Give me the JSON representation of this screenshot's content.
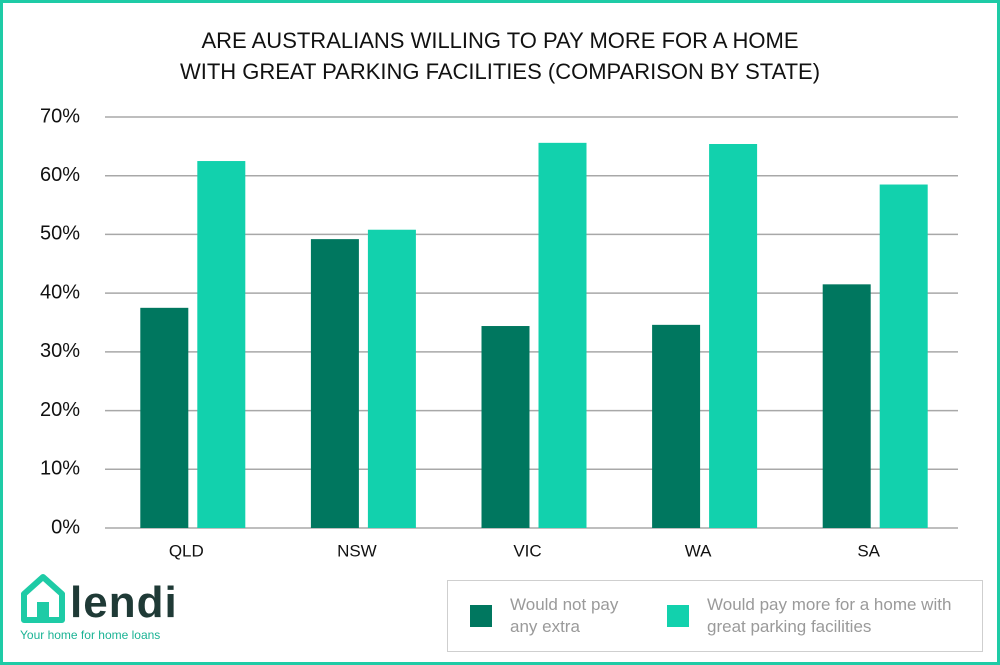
{
  "chart_data": {
    "type": "bar",
    "title": [
      "ARE AUSTRALIANS WILLING TO PAY MORE FOR A HOME",
      "WITH GREAT PARKING FACILITIES (COMPARISON BY STATE)"
    ],
    "categories": [
      "QLD",
      "NSW",
      "VIC",
      "WA",
      "SA"
    ],
    "series": [
      {
        "name": "Would not pay any extra",
        "color": "#00775f",
        "values": [
          37.5,
          49.2,
          34.4,
          34.6,
          41.5
        ]
      },
      {
        "name": "Would pay more for a home with great parking facilities",
        "color": "#12d1ad",
        "values": [
          62.5,
          50.8,
          65.6,
          65.4,
          58.5
        ]
      }
    ],
    "ylim": [
      0,
      70
    ],
    "yticks": [
      {
        "value": 0,
        "label": "0%"
      },
      {
        "value": 10,
        "label": "10%"
      },
      {
        "value": 20,
        "label": "20%"
      },
      {
        "value": 30,
        "label": "30%"
      },
      {
        "value": 40,
        "label": "40%"
      },
      {
        "value": 50,
        "label": "50%"
      },
      {
        "value": 60,
        "label": "60%"
      },
      {
        "value": 70,
        "label": "70%"
      }
    ],
    "grid": true
  },
  "logo": {
    "name": "lendi",
    "tagline": "Your home for home loans"
  }
}
